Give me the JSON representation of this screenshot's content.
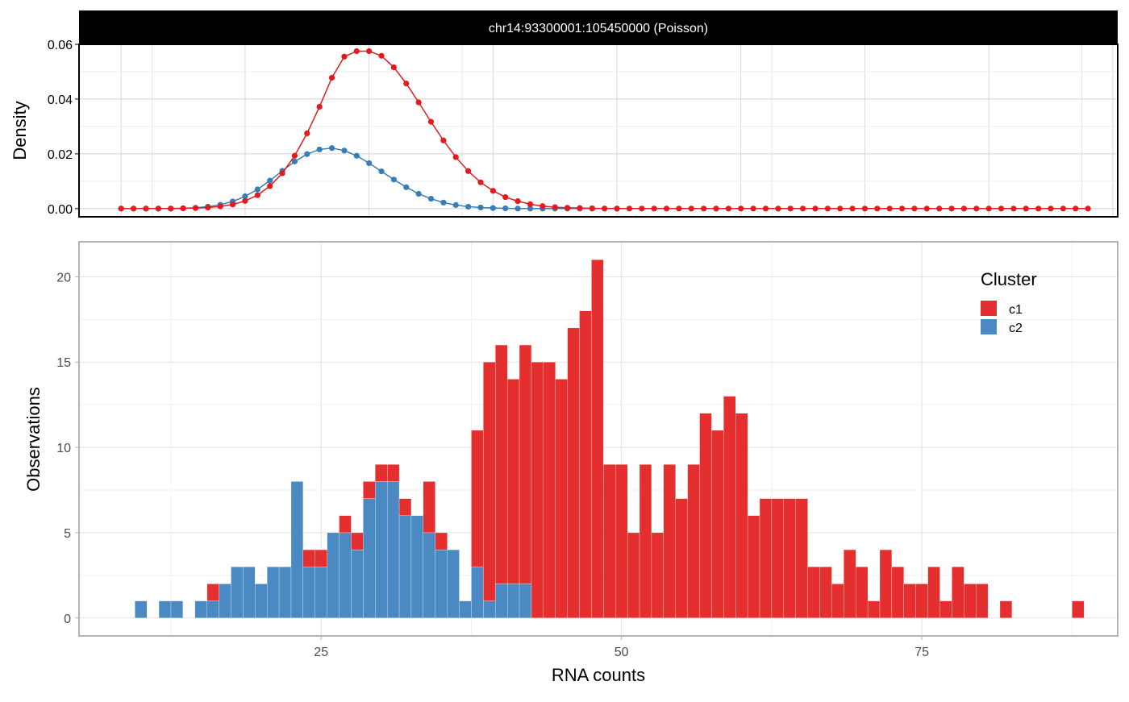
{
  "colors": {
    "c1": "#E41A1C",
    "c1_bar": "#E52F2F",
    "c2": "#377EB8",
    "c2_bar": "#4A89C1"
  },
  "chart_data": [
    {
      "type": "line",
      "strip_title": "chr14:93300001:105450000 (Poisson)",
      "title": "",
      "xlabel": "",
      "ylabel": "Density",
      "xlim": [
        6.6,
        90.4
      ],
      "ylim": [
        -0.003,
        0.06
      ],
      "y_ticks": [
        0,
        0.02,
        0.04,
        0.06
      ],
      "y_tick_labels": [
        "0.00",
        "0.02",
        "0.04",
        "0.06"
      ],
      "series": [
        {
          "key": "c1",
          "x": [
            10,
            11,
            12,
            13,
            14,
            15,
            16,
            17,
            18,
            19,
            20,
            21,
            22,
            23,
            24,
            25,
            26,
            27,
            28,
            29,
            30,
            31,
            32,
            33,
            34,
            35,
            36,
            37,
            38,
            39,
            40,
            41,
            42,
            43,
            44,
            45,
            46,
            47,
            48,
            49,
            50,
            51,
            52,
            53,
            54,
            55,
            56,
            57,
            58,
            59,
            60,
            61,
            62,
            63,
            64,
            65,
            66,
            67,
            68,
            69,
            70,
            71,
            72,
            73,
            74,
            75,
            76,
            77,
            78,
            79,
            80,
            81,
            82,
            83,
            84,
            85,
            86,
            87,
            88
          ],
          "values": [
            0,
            0,
            0,
            0,
            0,
            0.0001,
            0.0002,
            0.0004,
            0.0008,
            0.0015,
            0.0028,
            0.0049,
            0.0082,
            0.0129,
            0.0193,
            0.0275,
            0.0372,
            0.0478,
            0.0555,
            0.0575,
            0.0575,
            0.0558,
            0.0516,
            0.0457,
            0.0388,
            0.0317,
            0.0249,
            0.0188,
            0.0137,
            0.0096,
            0.0065,
            0.0042,
            0.0027,
            0.0016,
            0.0009,
            0.0005,
            0.0003,
            0.0002,
            0.0001,
            0,
            0,
            0,
            0,
            0,
            0,
            0,
            0,
            0,
            0,
            0,
            0,
            0,
            0,
            0,
            0,
            0,
            0,
            0,
            0,
            0,
            0,
            0,
            0,
            0,
            0,
            0,
            0,
            0,
            0,
            0,
            0,
            0,
            0,
            0,
            0,
            0,
            0,
            0,
            0
          ]
        },
        {
          "key": "c2",
          "x": [
            10,
            11,
            12,
            13,
            14,
            15,
            16,
            17,
            18,
            19,
            20,
            21,
            22,
            23,
            24,
            25,
            26,
            27,
            28,
            29,
            30,
            31,
            32,
            33,
            34,
            35,
            36,
            37,
            38,
            39,
            40,
            41,
            42,
            43,
            44,
            45,
            46,
            47,
            48,
            49,
            50
          ],
          "values": [
            0,
            0,
            0,
            0,
            0,
            0.0001,
            0.0003,
            0.0007,
            0.0014,
            0.0026,
            0.0045,
            0.007,
            0.0102,
            0.0138,
            0.0172,
            0.0199,
            0.0216,
            0.0221,
            0.0212,
            0.0193,
            0.0166,
            0.0136,
            0.0106,
            0.0078,
            0.0054,
            0.0036,
            0.0022,
            0.0013,
            0.0007,
            0.0004,
            0.0002,
            0.0001,
            0,
            0,
            0,
            0,
            0,
            0,
            0,
            0,
            0
          ]
        }
      ]
    },
    {
      "type": "bar",
      "stacked": true,
      "xlabel": "RNA counts",
      "ylabel": "Observations",
      "xlim": [
        4.85,
        91.3
      ],
      "ylim": [
        -1.05,
        22.05
      ],
      "x_ticks": [
        25,
        50,
        75
      ],
      "x_tick_labels": [
        "25",
        "50",
        "75"
      ],
      "y_ticks": [
        0,
        5,
        10,
        15,
        20
      ],
      "y_tick_labels": [
        "0",
        "5",
        "10",
        "15",
        "20"
      ],
      "legend": {
        "title": "Cluster",
        "entries": [
          "c1",
          "c2"
        ],
        "position": "top-right"
      },
      "series": [
        {
          "name": "c1",
          "key": "c1",
          "x": [
            16,
            20,
            22,
            23,
            24,
            25,
            26,
            27,
            28,
            29,
            30,
            31,
            32,
            34,
            35,
            36,
            37,
            38,
            39,
            40,
            41,
            42,
            43,
            44,
            45,
            46,
            47,
            48,
            49,
            50,
            51,
            52,
            53,
            54,
            55,
            56,
            57,
            58,
            59,
            60,
            61,
            62,
            63,
            64,
            65,
            66,
            67,
            68,
            69,
            70,
            71,
            72,
            73,
            74,
            75,
            76,
            77,
            78,
            79,
            80,
            81,
            82,
            83,
            84,
            85,
            86,
            87,
            88
          ],
          "values": [
            1,
            0,
            0,
            0,
            1,
            1,
            0,
            1,
            1,
            1,
            1,
            1,
            1,
            3,
            1,
            0,
            0,
            8,
            14,
            14,
            12,
            14,
            15,
            15,
            14,
            17,
            18,
            21,
            9,
            9,
            5,
            9,
            5,
            9,
            7,
            9,
            12,
            11,
            13,
            12,
            6,
            7,
            7,
            7,
            7,
            3,
            3,
            2,
            4,
            3,
            1,
            4,
            3,
            2,
            2,
            3,
            1,
            3,
            2,
            2,
            0,
            1,
            0,
            0,
            0,
            0,
            0,
            1
          ]
        },
        {
          "name": "c2",
          "key": "c2",
          "x": [
            10,
            12,
            13,
            15,
            16,
            17,
            18,
            19,
            20,
            21,
            22,
            23,
            24,
            25,
            26,
            27,
            28,
            29,
            30,
            31,
            32,
            33,
            34,
            35,
            36,
            37,
            38,
            39,
            40,
            41,
            42
          ],
          "values": [
            1,
            1,
            1,
            1,
            1,
            2,
            3,
            3,
            2,
            3,
            3,
            8,
            3,
            3,
            5,
            5,
            4,
            7,
            8,
            8,
            6,
            6,
            5,
            4,
            4,
            1,
            3,
            1,
            2,
            2,
            2
          ]
        }
      ]
    }
  ]
}
